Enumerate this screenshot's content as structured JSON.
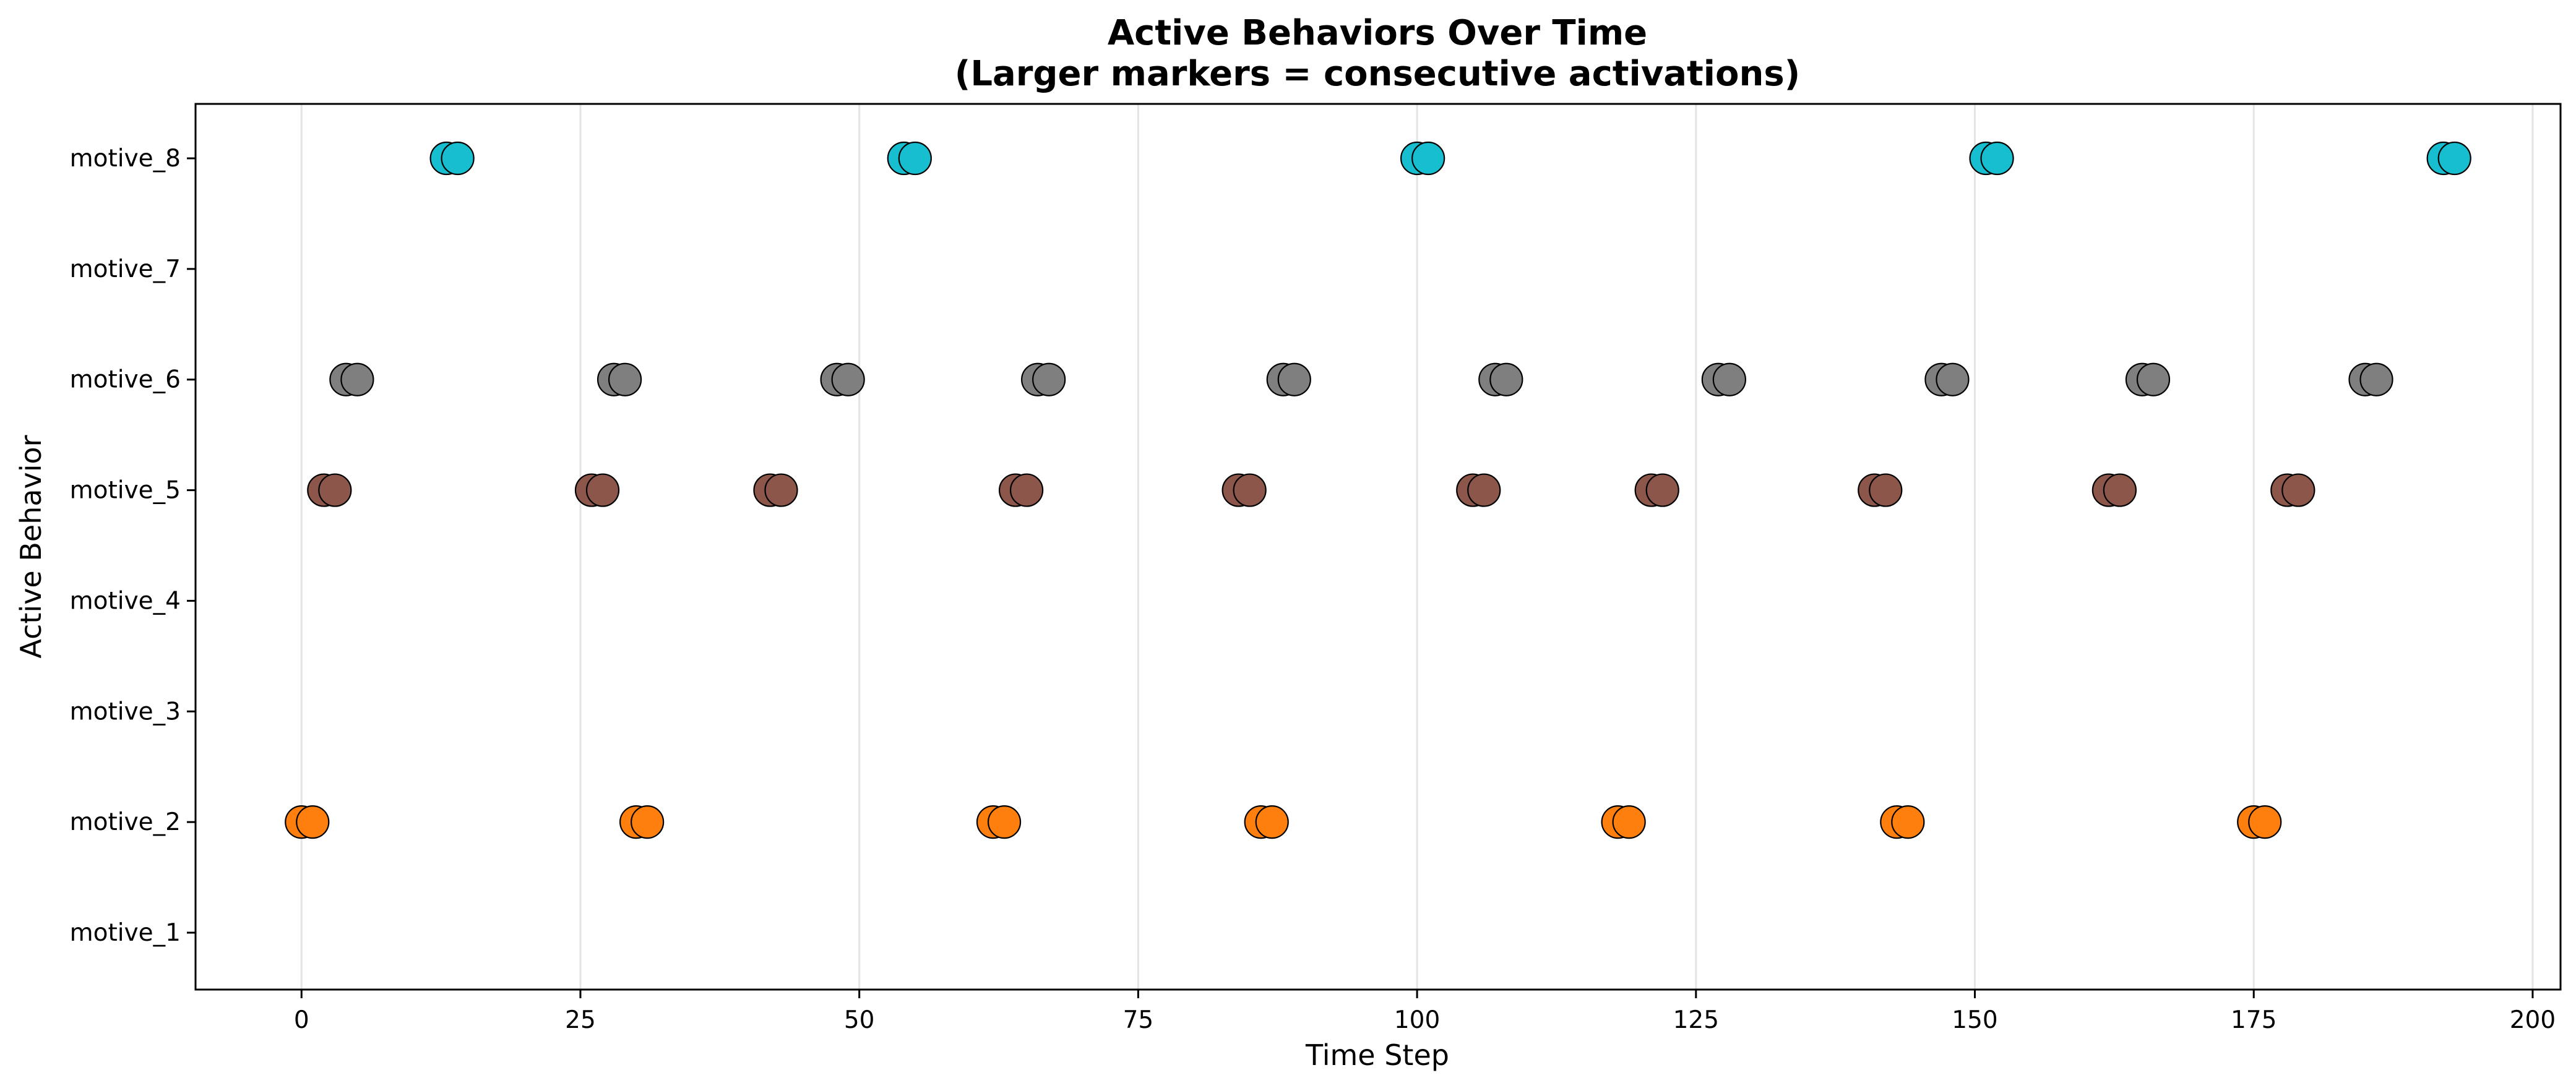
{
  "chart_data": {
    "type": "scatter",
    "title": "Active Behaviors Over Time",
    "subtitle": "(Larger markers = consecutive activations)",
    "xlabel": "Time Step",
    "ylabel": "Active Behavior",
    "xlim": [
      -9.5,
      202.5
    ],
    "xticks": [
      0,
      25,
      50,
      75,
      100,
      125,
      150,
      175,
      200
    ],
    "categories": [
      "motive_1",
      "motive_2",
      "motive_3",
      "motive_4",
      "motive_5",
      "motive_6",
      "motive_7",
      "motive_8"
    ],
    "grid": "vertical",
    "series": [
      {
        "category": "motive_1",
        "color": "#1f77b4",
        "x": []
      },
      {
        "category": "motive_2",
        "color": "#ff7f0e",
        "x": [
          0,
          1,
          30,
          31,
          62,
          63,
          86,
          87,
          118,
          119,
          143,
          144,
          175,
          176
        ]
      },
      {
        "category": "motive_3",
        "color": "#2ca02c",
        "x": []
      },
      {
        "category": "motive_4",
        "color": "#d62728",
        "x": []
      },
      {
        "category": "motive_5",
        "color": "#8c564b",
        "x": [
          2,
          3,
          26,
          27,
          42,
          43,
          64,
          65,
          84,
          85,
          105,
          106,
          121,
          122,
          141,
          142,
          162,
          163,
          178,
          179
        ]
      },
      {
        "category": "motive_6",
        "color": "#7f7f7f",
        "x": [
          4,
          5,
          28,
          29,
          48,
          49,
          66,
          67,
          88,
          89,
          107,
          108,
          127,
          128,
          147,
          148,
          165,
          166,
          185,
          186
        ]
      },
      {
        "category": "motive_7",
        "color": "#bcbd22",
        "x": []
      },
      {
        "category": "motive_8",
        "color": "#17becf",
        "x": [
          13,
          14,
          54,
          55,
          100,
          101,
          151,
          152,
          192,
          193
        ]
      }
    ]
  }
}
